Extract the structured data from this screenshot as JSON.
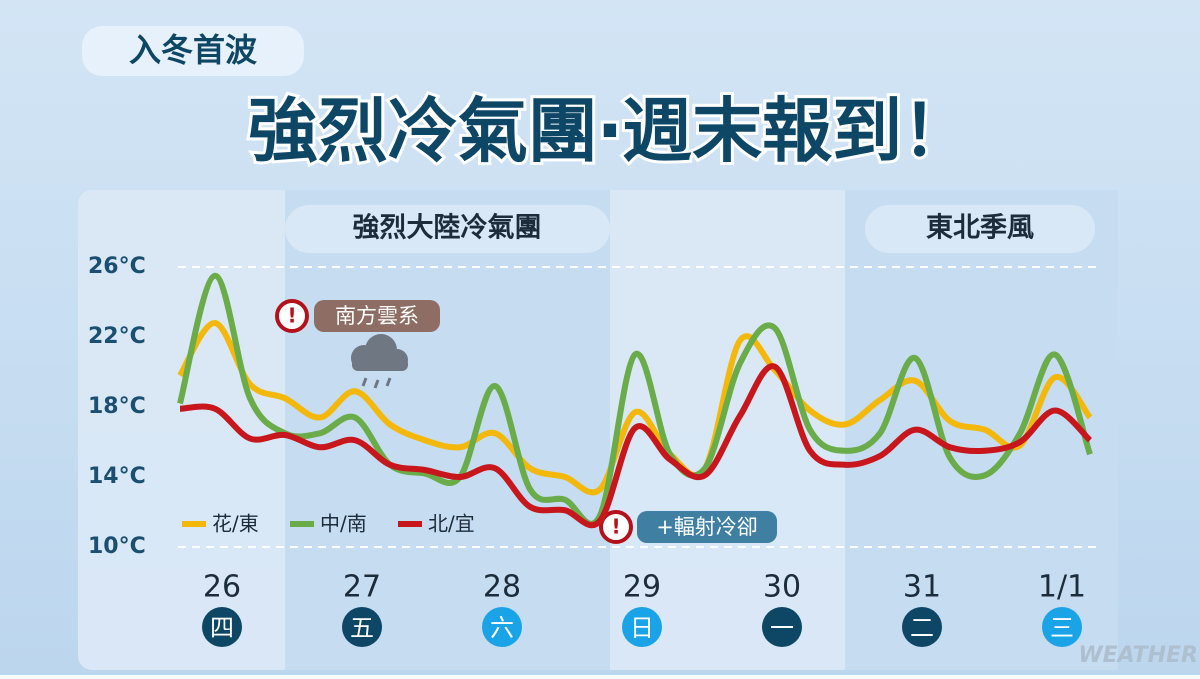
{
  "badge": "入冬首波",
  "headline": "強烈冷氣團‧週末報到！",
  "watermark": "WEATHER",
  "chart_data": {
    "type": "line",
    "periods": [
      {
        "label": "強烈大陸冷氣團"
      },
      {
        "label": "東北季風"
      }
    ],
    "annotations": [
      "南方雲系",
      "+輻射冷卻"
    ],
    "categories": [
      null,
      "26",
      null,
      null,
      null,
      "27",
      null,
      null,
      null,
      "28",
      null,
      null,
      null,
      "29",
      null,
      null,
      null,
      "30",
      null,
      null,
      null,
      "31",
      null,
      null,
      null,
      "1/1",
      null
    ],
    "weekdays": [
      "四",
      "五",
      "六",
      "日",
      "一",
      "二",
      "三"
    ],
    "weekday_colors": [
      "#0e4766",
      "#0e4766",
      "#1aa3e6",
      "#1aa3e6",
      "#0e4766",
      "#0e4766",
      "#1aa3e6"
    ],
    "series": [
      {
        "name": "花/東",
        "color": "#f3b80a",
        "values": [
          19.8,
          22.8,
          19.3,
          18.5,
          17.4,
          18.9,
          17.0,
          16.1,
          15.7,
          16.5,
          14.5,
          14.0,
          13.3,
          17.7,
          15.3,
          14.5,
          21.8,
          20.1,
          17.8,
          17.0,
          18.4,
          19.5,
          17.2,
          16.7,
          15.8,
          19.7,
          17.4
        ]
      },
      {
        "name": "中/南",
        "color": "#6aab4a",
        "values": [
          18.2,
          25.5,
          18.5,
          16.5,
          16.5,
          17.4,
          14.7,
          14.2,
          14.0,
          19.2,
          13.3,
          12.7,
          11.8,
          21.0,
          15.3,
          14.5,
          20.5,
          22.5,
          16.7,
          15.5,
          16.5,
          20.8,
          15.1,
          14.1,
          16.5,
          21.0,
          15.3
        ]
      },
      {
        "name": "北/宜",
        "color": "#c8161d",
        "values": [
          17.9,
          17.9,
          16.2,
          16.4,
          15.7,
          16.1,
          14.7,
          14.4,
          14.0,
          14.5,
          12.3,
          12.1,
          11.5,
          16.8,
          15.0,
          14.1,
          17.5,
          20.3,
          15.5,
          14.7,
          15.2,
          16.7,
          15.7,
          15.5,
          16.0,
          17.8,
          16.1
        ]
      }
    ],
    "ylim": [
      10,
      26
    ],
    "yticks": [
      {
        "value": 26,
        "label": "26°C"
      },
      {
        "value": 22,
        "label": "22°C"
      },
      {
        "value": 18,
        "label": "18°C"
      },
      {
        "value": 14,
        "label": "14°C"
      },
      {
        "value": 10,
        "label": "10°C"
      }
    ],
    "legend": "lower left"
  }
}
